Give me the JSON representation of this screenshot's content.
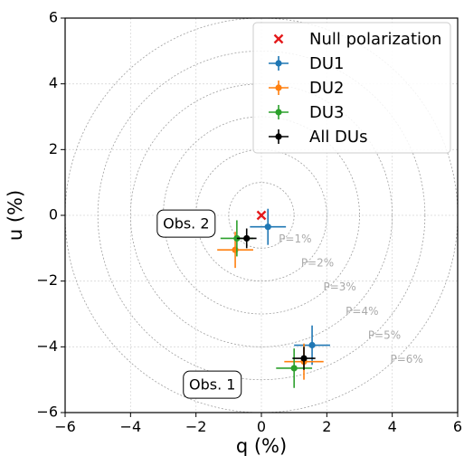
{
  "chart_data": {
    "type": "scatter",
    "xlabel": "q (%)",
    "ylabel": "u (%)",
    "xlim": [
      -6,
      6
    ],
    "ylim": [
      -6,
      6
    ],
    "ticks": [
      -6,
      -4,
      -2,
      0,
      2,
      4,
      6
    ],
    "grid": true,
    "legend_position": "top-right",
    "null_point": {
      "name": "Null polarization",
      "q": 0,
      "u": 0,
      "color": "#e41a1c"
    },
    "circles": [
      {
        "r": 1,
        "label": "P=1%"
      },
      {
        "r": 2,
        "label": "P=2%"
      },
      {
        "r": 3,
        "label": "P=3%"
      },
      {
        "r": 4,
        "label": "P=4%"
      },
      {
        "r": 5,
        "label": "P=5%"
      },
      {
        "r": 6,
        "label": "P=6%"
      }
    ],
    "series": [
      {
        "name": "DU1",
        "color": "#1f77b4",
        "points": [
          {
            "obs": "Obs. 2",
            "q": 0.2,
            "u": -0.35,
            "qerr": 0.55,
            "uerr": 0.55
          },
          {
            "obs": "Obs. 1",
            "q": 1.55,
            "u": -3.95,
            "qerr": 0.55,
            "uerr": 0.6
          }
        ]
      },
      {
        "name": "DU2",
        "color": "#ff7f0e",
        "points": [
          {
            "obs": "Obs. 2",
            "q": -0.8,
            "u": -1.05,
            "qerr": 0.55,
            "uerr": 0.55
          },
          {
            "obs": "Obs. 1",
            "q": 1.3,
            "u": -4.45,
            "qerr": 0.6,
            "uerr": 0.55
          }
        ]
      },
      {
        "name": "DU3",
        "color": "#2ca02c",
        "points": [
          {
            "obs": "Obs. 2",
            "q": -0.75,
            "u": -0.7,
            "qerr": 0.5,
            "uerr": 0.55
          },
          {
            "obs": "Obs. 1",
            "q": 1.0,
            "u": -4.65,
            "qerr": 0.55,
            "uerr": 0.6
          }
        ]
      },
      {
        "name": "All DUs",
        "color": "#000000",
        "points": [
          {
            "obs": "Obs. 2",
            "q": -0.45,
            "u": -0.7,
            "qerr": 0.3,
            "uerr": 0.3
          },
          {
            "obs": "Obs. 1",
            "q": 1.3,
            "u": -4.35,
            "qerr": 0.35,
            "uerr": 0.35
          }
        ]
      }
    ],
    "annotations": [
      {
        "text": "Obs. 2",
        "q": -2.3,
        "u": -0.25
      },
      {
        "text": "Obs. 1",
        "q": -1.5,
        "u": -5.15
      }
    ]
  }
}
